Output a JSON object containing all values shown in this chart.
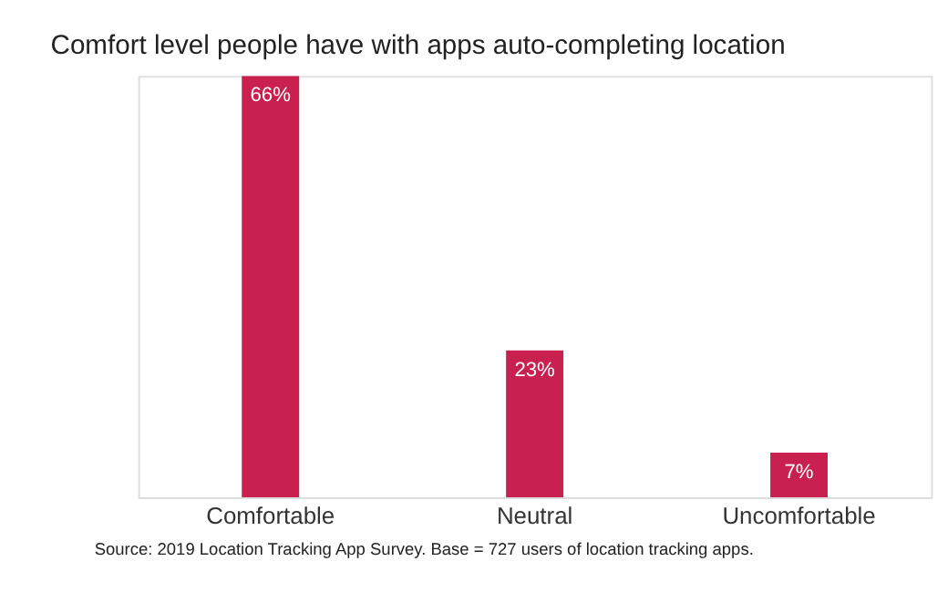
{
  "chart_data": {
    "type": "bar",
    "title": "Comfort level people have with apps auto-completing location",
    "categories": [
      "Comfortable",
      "Neutral",
      "Uncomfortable"
    ],
    "values": [
      66,
      23,
      7
    ],
    "color": "#c8214f",
    "data_labels": true,
    "value_labels": [
      "66%",
      "23%",
      "7%"
    ],
    "grid": false,
    "annotations": [
      "Source: 2019 Location Tracking App Survey. Base = 727 users of location tracking apps."
    ]
  }
}
